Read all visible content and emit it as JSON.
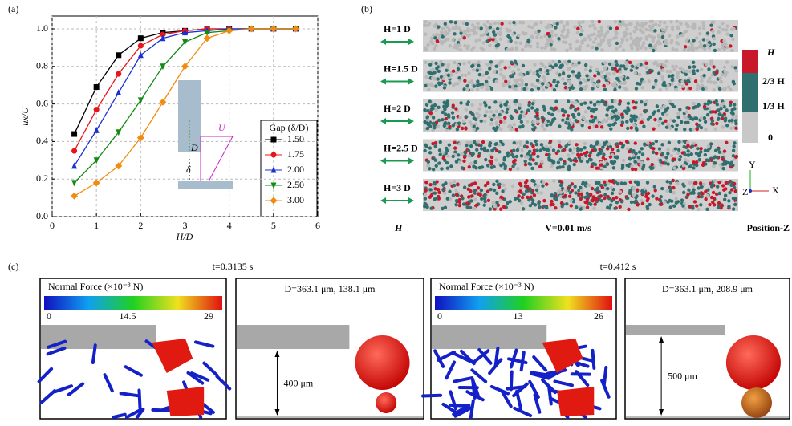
{
  "panel_labels": [
    "(a)",
    "(b)",
    "(c)"
  ],
  "chart_data": {
    "type": "line",
    "x_label": "H/D",
    "y_label": "ux/U",
    "x": [
      0.5,
      1,
      1.5,
      2,
      2.5,
      3,
      3.5,
      4,
      4.5,
      5,
      5.5
    ],
    "xlim": [
      0,
      6
    ],
    "xticks": [
      0,
      1,
      2,
      3,
      4,
      5,
      6
    ],
    "ylim": [
      0,
      1
    ],
    "yticks": [
      {
        "value": 0,
        "label": "0.0"
      },
      0.2,
      0.4,
      0.6,
      0.8,
      {
        "value": 1,
        "label": "1.0"
      }
    ],
    "grid": true,
    "legend_title": "Gap (δ/D)",
    "legend_position": "lower right",
    "series": [
      {
        "name": "1.50",
        "color": "#000000",
        "marker": "square",
        "values": [
          0.44,
          0.69,
          0.86,
          0.95,
          0.98,
          0.99,
          1.0,
          1.0,
          1.0,
          1.0,
          1.0
        ]
      },
      {
        "name": "1.75",
        "color": "#e8141c",
        "marker": "circle",
        "values": [
          0.35,
          0.57,
          0.76,
          0.91,
          0.97,
          0.99,
          1.0,
          1.0,
          1.0,
          1.0,
          1.0
        ]
      },
      {
        "name": "2.00",
        "color": "#1a2fd6",
        "marker": "triangle",
        "values": [
          0.27,
          0.46,
          0.66,
          0.86,
          0.95,
          0.98,
          0.99,
          1.0,
          1.0,
          1.0,
          1.0
        ]
      },
      {
        "name": "2.50",
        "color": "#138a13",
        "marker": "triangle-down",
        "values": [
          0.18,
          0.3,
          0.45,
          0.62,
          0.8,
          0.93,
          0.98,
          0.99,
          1.0,
          1.0,
          1.0
        ]
      },
      {
        "name": "3.00",
        "color": "#f28c0f",
        "marker": "diamond",
        "values": [
          0.11,
          0.18,
          0.27,
          0.42,
          0.61,
          0.8,
          0.95,
          0.99,
          1.0,
          1.0,
          1.0
        ]
      }
    ]
  },
  "inset": {
    "velocity": "U",
    "diameter": "D",
    "gap": "δ"
  },
  "panel_b": {
    "rows": [
      "H=1 D",
      "H=1.5 D",
      "H=2 D",
      "H=2.5 D",
      "H=3 D"
    ],
    "colorbar": [
      "H",
      "2/3 H",
      "1/3 H",
      "0"
    ],
    "footer": [
      "H",
      "V=0.01 m/s",
      "Position-Z"
    ],
    "axes": [
      "Y",
      "Z",
      "X"
    ]
  },
  "panel_c": {
    "times": [
      "t=0.3135 s",
      "t=0.412 s"
    ],
    "frames": [
      {
        "title": "Normal Force (×10⁻³ N)",
        "ticks": [
          "0",
          "14.5",
          "29"
        ]
      },
      {
        "caption": "D=363.1 μm, 138.1 μm",
        "gap": "400 μm"
      },
      {
        "title": "Normal Force (×10⁻³ N)",
        "ticks": [
          "0",
          "13",
          "26"
        ]
      },
      {
        "caption": "D=363.1 μm, 208.9 μm",
        "gap": "500 μm"
      }
    ]
  }
}
